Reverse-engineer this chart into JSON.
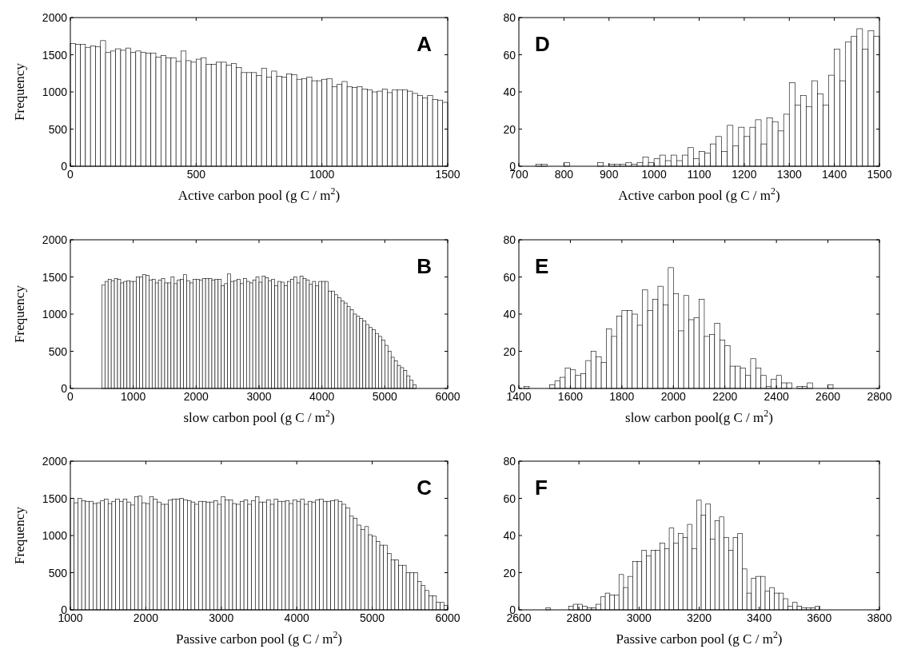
{
  "chart_data": [
    {
      "type": "histogram",
      "xlabel": "Active carbon pool (g C / m$^{2}$)",
      "ylabel": "Frequency",
      "annotations": [
        "A"
      ],
      "color": "#ffffff",
      "xlim": [
        0,
        1500
      ],
      "ylim": [
        0,
        2000
      ],
      "xticks": [
        0,
        500,
        1000,
        1500
      ],
      "yticks": [
        0,
        500,
        1000,
        1500,
        2000
      ],
      "bins": [
        0,
        20,
        40,
        60,
        80,
        100,
        120,
        140,
        160,
        180,
        200,
        220,
        240,
        260,
        280,
        300,
        320,
        340,
        360,
        380,
        400,
        420,
        440,
        460,
        480,
        500,
        520,
        540,
        560,
        580,
        600,
        620,
        640,
        660,
        680,
        700,
        720,
        740,
        760,
        780,
        800,
        820,
        840,
        860,
        880,
        900,
        920,
        940,
        960,
        980,
        1000,
        1020,
        1040,
        1060,
        1080,
        1100,
        1120,
        1140,
        1160,
        1180,
        1200,
        1220,
        1240,
        1260,
        1280,
        1300,
        1320,
        1340,
        1360,
        1380,
        1400,
        1420,
        1440,
        1460,
        1480,
        1500
      ],
      "values": [
        1650,
        1640,
        1640,
        1600,
        1620,
        1610,
        1690,
        1530,
        1550,
        1580,
        1560,
        1590,
        1530,
        1550,
        1530,
        1520,
        1520,
        1470,
        1490,
        1460,
        1460,
        1410,
        1550,
        1420,
        1400,
        1440,
        1460,
        1370,
        1370,
        1400,
        1400,
        1360,
        1380,
        1330,
        1260,
        1260,
        1260,
        1220,
        1320,
        1200,
        1280,
        1210,
        1200,
        1240,
        1230,
        1170,
        1180,
        1200,
        1150,
        1150,
        1170,
        1180,
        1070,
        1100,
        1140,
        1070,
        1060,
        1070,
        1040,
        1030,
        1000,
        1010,
        1040,
        990,
        1030,
        1030,
        1030,
        1010,
        980,
        950,
        920,
        950,
        900,
        890,
        860
      ]
    },
    {
      "type": "histogram",
      "xlabel": "Active carbon pool (g C / m$^{2}$)",
      "annotations": [
        "D"
      ],
      "color": "#ffffff",
      "xlim": [
        700,
        1500
      ],
      "ylim": [
        0,
        80
      ],
      "xticks": [
        700,
        800,
        900,
        1000,
        1100,
        1200,
        1300,
        1400,
        1500
      ],
      "yticks": [
        0,
        20,
        40,
        60,
        80
      ],
      "bins": [
        737.5,
        750,
        762.5,
        775,
        787.5,
        800,
        812.5,
        825,
        837.5,
        850,
        862.5,
        875,
        887.5,
        900,
        912.5,
        925,
        937.5,
        950,
        962.5,
        975,
        987.5,
        1000,
        1012.5,
        1025,
        1037.5,
        1050,
        1062.5,
        1075,
        1087.5,
        1100,
        1112.5,
        1125,
        1137.5,
        1150,
        1162.5,
        1175,
        1187.5,
        1200,
        1212.5,
        1225,
        1237.5,
        1250,
        1262.5,
        1275,
        1287.5,
        1300,
        1312.5,
        1325,
        1337.5,
        1350,
        1362.5,
        1375,
        1387.5,
        1400,
        1412.5,
        1425,
        1437.5,
        1450,
        1462.5,
        1475,
        1487.5,
        1500
      ],
      "values": [
        1,
        1,
        0,
        0,
        0,
        2,
        0,
        0,
        0,
        0,
        0,
        2,
        0,
        1,
        1,
        1,
        2,
        1,
        2,
        5,
        2,
        4,
        6,
        3,
        6,
        3,
        6,
        10,
        4,
        8,
        7,
        12,
        16,
        8,
        22,
        11,
        21,
        16,
        21,
        25,
        12,
        26,
        24,
        19,
        28,
        45,
        33,
        38,
        32,
        46,
        39,
        33,
        49,
        63,
        46,
        67,
        70,
        74,
        63,
        73,
        70
      ]
    },
    {
      "type": "histogram",
      "xlabel": "slow carbon pool (g C / m$^{2}$)",
      "ylabel": "Frequency",
      "annotations": [
        "B"
      ],
      "color": "#ffffff",
      "xlim": [
        0,
        6000
      ],
      "ylim": [
        0,
        2000
      ],
      "xticks": [
        0,
        1000,
        2000,
        3000,
        4000,
        5000,
        6000
      ],
      "yticks": [
        0,
        500,
        1000,
        1500,
        2000
      ],
      "bins": [
        500,
        550,
        600,
        650,
        700,
        750,
        800,
        850,
        900,
        950,
        1000,
        1050,
        1100,
        1150,
        1200,
        1250,
        1300,
        1350,
        1400,
        1450,
        1500,
        1550,
        1600,
        1650,
        1700,
        1750,
        1800,
        1850,
        1900,
        1950,
        2000,
        2050,
        2100,
        2150,
        2200,
        2250,
        2300,
        2350,
        2400,
        2450,
        2500,
        2550,
        2600,
        2650,
        2700,
        2750,
        2800,
        2850,
        2900,
        2950,
        3000,
        3050,
        3100,
        3150,
        3200,
        3250,
        3300,
        3350,
        3400,
        3450,
        3500,
        3550,
        3600,
        3650,
        3700,
        3750,
        3800,
        3850,
        3900,
        3950,
        4000,
        4050,
        4100,
        4150,
        4200,
        4250,
        4300,
        4350,
        4400,
        4450,
        4500,
        4550,
        4600,
        4650,
        4700,
        4750,
        4800,
        4850,
        4900,
        4950,
        5000,
        5050,
        5100,
        5150,
        5200,
        5250,
        5300,
        5350,
        5400,
        5450,
        5500
      ],
      "values": [
        1390,
        1440,
        1470,
        1450,
        1480,
        1470,
        1420,
        1440,
        1450,
        1440,
        1440,
        1500,
        1500,
        1530,
        1520,
        1460,
        1470,
        1420,
        1460,
        1480,
        1420,
        1420,
        1500,
        1410,
        1460,
        1470,
        1530,
        1450,
        1420,
        1470,
        1470,
        1460,
        1480,
        1480,
        1480,
        1460,
        1470,
        1470,
        1380,
        1410,
        1540,
        1440,
        1450,
        1470,
        1410,
        1480,
        1440,
        1420,
        1460,
        1500,
        1430,
        1510,
        1490,
        1450,
        1470,
        1380,
        1440,
        1430,
        1380,
        1440,
        1470,
        1500,
        1420,
        1510,
        1480,
        1460,
        1400,
        1440,
        1380,
        1440,
        1440,
        1440,
        1310,
        1310,
        1260,
        1220,
        1180,
        1150,
        1100,
        1060,
        1000,
        970,
        940,
        910,
        860,
        820,
        790,
        740,
        700,
        650,
        580,
        500,
        420,
        370,
        310,
        280,
        240,
        170,
        110,
        50
      ]
    },
    {
      "type": "histogram",
      "xlabel": "slow carbon pool(g C / m$^{2}$)",
      "annotations": [
        "E"
      ],
      "color": "#ffffff",
      "xlim": [
        1400,
        2800
      ],
      "ylim": [
        0,
        80
      ],
      "xticks": [
        1400,
        1600,
        1800,
        2000,
        2200,
        2400,
        2600,
        2800
      ],
      "yticks": [
        0,
        20,
        40,
        60,
        80
      ],
      "bins": [
        1420,
        1440,
        1460,
        1480,
        1500,
        1520,
        1540,
        1560,
        1580,
        1600,
        1620,
        1640,
        1660,
        1680,
        1700,
        1720,
        1740,
        1760,
        1780,
        1800,
        1820,
        1840,
        1860,
        1880,
        1900,
        1920,
        1940,
        1960,
        1980,
        2000,
        2020,
        2040,
        2060,
        2080,
        2100,
        2120,
        2140,
        2160,
        2180,
        2200,
        2220,
        2240,
        2260,
        2280,
        2300,
        2320,
        2340,
        2360,
        2380,
        2400,
        2420,
        2440,
        2460,
        2480,
        2500,
        2520,
        2540,
        2560,
        2580,
        2600,
        2620
      ],
      "values": [
        1,
        0,
        0,
        0,
        0,
        2,
        4,
        6,
        11,
        10,
        7,
        8,
        15,
        20,
        17,
        14,
        32,
        28,
        39,
        42,
        42,
        40,
        34,
        53,
        42,
        48,
        55,
        45,
        65,
        51,
        31,
        50,
        37,
        38,
        48,
        28,
        29,
        35,
        26,
        23,
        12,
        12,
        11,
        7,
        16,
        11,
        7,
        1,
        5,
        7,
        3,
        3,
        0,
        1,
        1,
        3,
        0,
        0,
        0,
        2
      ]
    },
    {
      "type": "histogram",
      "xlabel": "Passive carbon pool (g C / m$^{2}$)",
      "ylabel": "Frequency",
      "annotations": [
        "C"
      ],
      "color": "#ffffff",
      "xlim": [
        1000,
        6000
      ],
      "ylim": [
        0,
        2000
      ],
      "xticks": [
        1000,
        2000,
        3000,
        4000,
        5000,
        6000
      ],
      "yticks": [
        0,
        500,
        1000,
        1500,
        2000
      ],
      "bins": [
        1000,
        1050,
        1100,
        1150,
        1200,
        1250,
        1300,
        1350,
        1400,
        1450,
        1500,
        1550,
        1600,
        1650,
        1700,
        1750,
        1800,
        1850,
        1900,
        1950,
        2000,
        2050,
        2100,
        2150,
        2200,
        2250,
        2300,
        2350,
        2400,
        2450,
        2500,
        2550,
        2600,
        2650,
        2700,
        2750,
        2800,
        2850,
        2900,
        2950,
        3000,
        3050,
        3100,
        3150,
        3200,
        3250,
        3300,
        3350,
        3400,
        3450,
        3500,
        3550,
        3600,
        3650,
        3700,
        3750,
        3800,
        3850,
        3900,
        3950,
        4000,
        4050,
        4100,
        4150,
        4200,
        4250,
        4300,
        4350,
        4400,
        4450,
        4500,
        4550,
        4600,
        4650,
        4700,
        4750,
        4800,
        4850,
        4900,
        4950,
        5000,
        5050,
        5100,
        5150,
        5200,
        5250,
        5300,
        5350,
        5400,
        5450,
        5500,
        5550,
        5600,
        5650,
        5700,
        5750,
        5800,
        5850,
        5900,
        5950,
        6000
      ],
      "values": [
        1500,
        1440,
        1500,
        1470,
        1460,
        1460,
        1430,
        1440,
        1470,
        1490,
        1430,
        1460,
        1490,
        1460,
        1490,
        1450,
        1410,
        1520,
        1530,
        1440,
        1430,
        1520,
        1490,
        1450,
        1420,
        1420,
        1480,
        1490,
        1490,
        1500,
        1480,
        1470,
        1450,
        1420,
        1460,
        1460,
        1450,
        1450,
        1470,
        1420,
        1520,
        1480,
        1480,
        1430,
        1420,
        1460,
        1480,
        1420,
        1470,
        1520,
        1450,
        1450,
        1480,
        1420,
        1490,
        1460,
        1460,
        1470,
        1430,
        1480,
        1460,
        1490,
        1420,
        1460,
        1450,
        1480,
        1490,
        1460,
        1460,
        1470,
        1480,
        1460,
        1420,
        1370,
        1260,
        1230,
        1140,
        1080,
        1120,
        1010,
        990,
        920,
        870,
        870,
        760,
        670,
        670,
        600,
        600,
        500,
        500,
        500,
        380,
        330,
        260,
        190,
        190,
        100,
        100,
        60
      ]
    },
    {
      "type": "histogram",
      "xlabel": "Passive carbon pool (g C / m$^{2}$)",
      "annotations": [
        "F"
      ],
      "color": "#ffffff",
      "xlim": [
        2600,
        3800
      ],
      "ylim": [
        0,
        80
      ],
      "xticks": [
        2600,
        2800,
        3000,
        3200,
        3400,
        3600,
        3800
      ],
      "yticks": [
        0,
        20,
        40,
        60,
        80
      ],
      "bins": [
        2690,
        2705.2,
        2720.4,
        2735.6,
        2750.8,
        2766,
        2781.2,
        2796.4,
        2811.6,
        2826.8,
        2842,
        2857.2,
        2872.4,
        2887.6,
        2902.8,
        2918,
        2933.2,
        2948.4,
        2963.6,
        2978.8,
        2994,
        3009.2,
        3024.4,
        3039.6,
        3054.8,
        3070,
        3085.2,
        3100.4,
        3115.6,
        3130.8,
        3146,
        3161.2,
        3176.4,
        3191.6,
        3206.8,
        3222,
        3237.2,
        3252.4,
        3267.6,
        3282.8,
        3298,
        3313.2,
        3328.4,
        3343.6,
        3358.8,
        3374,
        3389.2,
        3404.4,
        3419.6,
        3434.8,
        3450,
        3465.2,
        3480.4,
        3495.6,
        3510.8,
        3526,
        3541.2,
        3556.4,
        3571.6,
        3586.8,
        3602
      ],
      "values": [
        1,
        0,
        0,
        0,
        0,
        2,
        3,
        3,
        2,
        1,
        1,
        3,
        7,
        9,
        8,
        8,
        19,
        12,
        18,
        26,
        26,
        32,
        29,
        32,
        32,
        36,
        33,
        44,
        36,
        41,
        39,
        46,
        33,
        59,
        51,
        57,
        38,
        48,
        50,
        39,
        32,
        39,
        41,
        22,
        9,
        17,
        18,
        18,
        10,
        12,
        9,
        9,
        6,
        2,
        4,
        2,
        1,
        1,
        1,
        2
      ]
    }
  ]
}
